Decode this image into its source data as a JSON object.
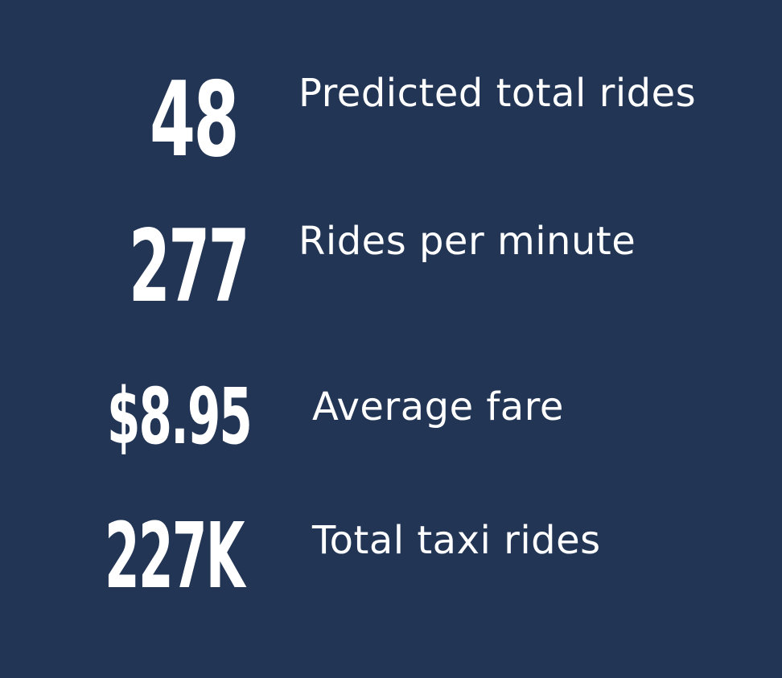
{
  "metrics": [
    {
      "value": "48",
      "label": "Predicted total rides"
    },
    {
      "value": "277",
      "label": "Rides per minute"
    },
    {
      "value": "$8.95",
      "label": "Average fare"
    },
    {
      "value": "227K",
      "label": "Total taxi rides"
    }
  ],
  "colors": {
    "background": "#223555",
    "text": "#ffffff"
  }
}
